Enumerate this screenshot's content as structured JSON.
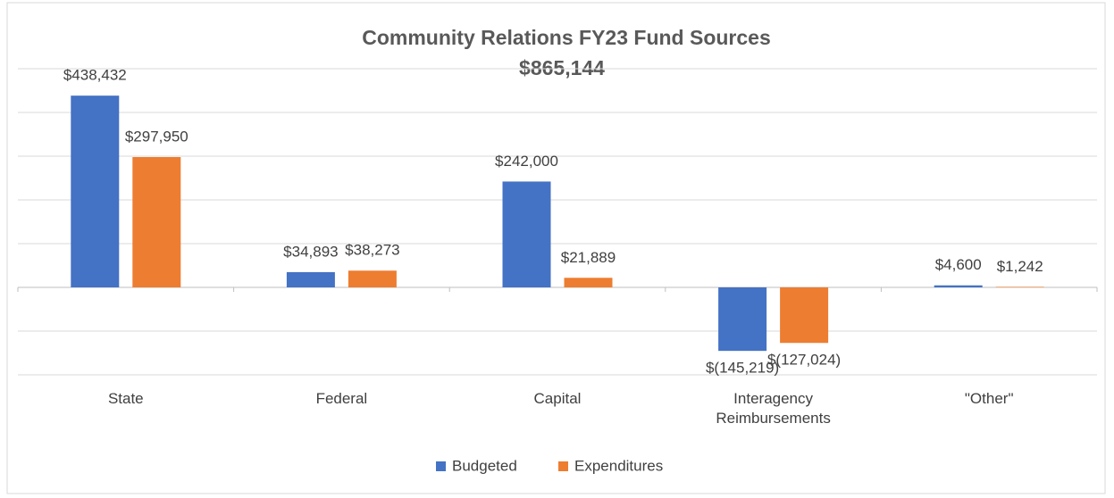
{
  "chart_data": {
    "type": "bar",
    "title": "Community Relations FY23 Fund Sources",
    "subtitle": "$865,144",
    "categories": [
      "State",
      "Federal",
      "Capital",
      "Interagency Reimbursements",
      "\"Other\""
    ],
    "series": [
      {
        "name": "Budgeted",
        "color": "#4472c4",
        "values": [
          438432,
          34893,
          242000,
          -145219,
          4600
        ],
        "value_labels": [
          "$438,432",
          "$34,893",
          "$242,000",
          "$(145,219)",
          "$4,600"
        ]
      },
      {
        "name": "Expenditures",
        "color": "#ed7d31",
        "values": [
          297950,
          38273,
          21889,
          -127024,
          1242
        ],
        "value_labels": [
          "$297,950",
          "$38,273",
          "$21,889",
          "$(127,024)",
          "$1,242"
        ]
      }
    ],
    "ylim": [
      -200000,
      500000
    ],
    "yticks": [
      -200000,
      -100000,
      0,
      100000,
      200000,
      300000,
      400000,
      500000
    ],
    "grid": true,
    "legend": "bottom"
  }
}
